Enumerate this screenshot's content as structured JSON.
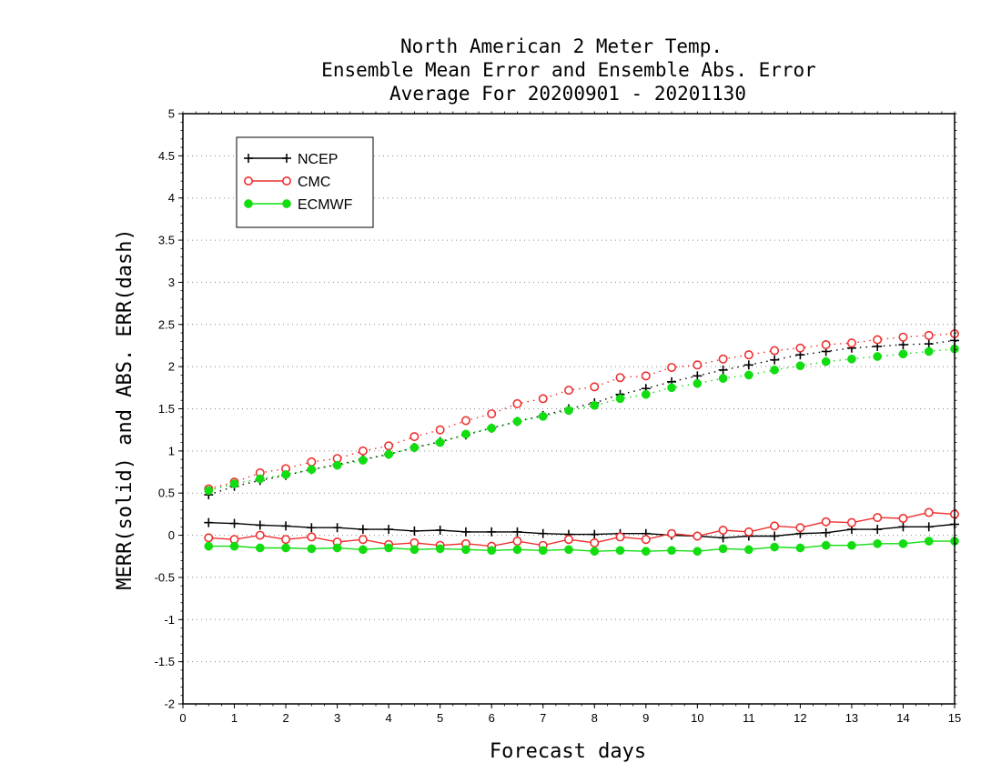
{
  "chart_data": {
    "type": "line",
    "title": [
      "North American 2 Meter Temp.",
      "Ensemble Mean Error and Ensemble Abs. Error",
      "Average For 20200901 - 20201130"
    ],
    "xlabel": "Forecast days",
    "ylabel": "MERR(solid) and ABS. ERR(dash)",
    "xlim": [
      0,
      15
    ],
    "ylim": [
      -2,
      5
    ],
    "xticks": [
      0,
      1,
      2,
      3,
      4,
      5,
      6,
      7,
      8,
      9,
      10,
      11,
      12,
      13,
      14,
      15
    ],
    "yticks": [
      -2,
      -1.5,
      -1,
      -0.5,
      0,
      0.5,
      1,
      1.5,
      2,
      2.5,
      3,
      3.5,
      4,
      4.5,
      5
    ],
    "grid": "horizontal-dotted",
    "legend_position": "top-left",
    "x": [
      0.5,
      1,
      1.5,
      2,
      2.5,
      3,
      3.5,
      4,
      4.5,
      5,
      5.5,
      6,
      6.5,
      7,
      7.5,
      8,
      8.5,
      9,
      9.5,
      10,
      10.5,
      11,
      11.5,
      12,
      12.5,
      13,
      13.5,
      14,
      14.5,
      15
    ],
    "series": [
      {
        "name": "NCEP",
        "color": "#000000",
        "marker": "plus",
        "merr": [
          0.15,
          0.14,
          0.12,
          0.11,
          0.09,
          0.09,
          0.07,
          0.07,
          0.05,
          0.06,
          0.04,
          0.04,
          0.04,
          0.02,
          0.01,
          0.01,
          0.02,
          0.02,
          0.0,
          -0.01,
          -0.03,
          -0.01,
          -0.01,
          0.02,
          0.03,
          0.07,
          0.07,
          0.1,
          0.1,
          0.13
        ],
        "abs_err": [
          0.48,
          0.58,
          0.65,
          0.71,
          0.78,
          0.84,
          0.9,
          0.96,
          1.04,
          1.11,
          1.19,
          1.27,
          1.35,
          1.42,
          1.5,
          1.57,
          1.67,
          1.74,
          1.82,
          1.89,
          1.96,
          2.02,
          2.08,
          2.14,
          2.18,
          2.22,
          2.24,
          2.26,
          2.27,
          2.31
        ]
      },
      {
        "name": "CMC",
        "color": "#ee3030",
        "marker": "open-circle",
        "merr": [
          -0.03,
          -0.05,
          0.0,
          -0.05,
          -0.02,
          -0.08,
          -0.05,
          -0.11,
          -0.09,
          -0.12,
          -0.1,
          -0.13,
          -0.07,
          -0.12,
          -0.05,
          -0.09,
          -0.02,
          -0.05,
          0.02,
          -0.01,
          0.06,
          0.04,
          0.11,
          0.09,
          0.16,
          0.15,
          0.21,
          0.2,
          0.27,
          0.25
        ],
        "abs_err": [
          0.55,
          0.63,
          0.74,
          0.79,
          0.87,
          0.91,
          1.0,
          1.06,
          1.17,
          1.25,
          1.36,
          1.44,
          1.56,
          1.62,
          1.72,
          1.76,
          1.87,
          1.89,
          1.99,
          2.02,
          2.09,
          2.14,
          2.19,
          2.22,
          2.26,
          2.28,
          2.32,
          2.35,
          2.37,
          2.39
        ]
      },
      {
        "name": "ECMWF",
        "color": "#11dd11",
        "marker": "filled-circle",
        "merr": [
          -0.13,
          -0.13,
          -0.15,
          -0.15,
          -0.16,
          -0.15,
          -0.17,
          -0.15,
          -0.17,
          -0.16,
          -0.17,
          -0.18,
          -0.17,
          -0.18,
          -0.17,
          -0.19,
          -0.18,
          -0.19,
          -0.18,
          -0.19,
          -0.16,
          -0.17,
          -0.14,
          -0.15,
          -0.12,
          -0.12,
          -0.1,
          -0.1,
          -0.07,
          -0.07
        ],
        "abs_err": [
          0.53,
          0.61,
          0.67,
          0.72,
          0.78,
          0.83,
          0.89,
          0.96,
          1.04,
          1.1,
          1.2,
          1.27,
          1.35,
          1.41,
          1.48,
          1.54,
          1.62,
          1.67,
          1.75,
          1.8,
          1.86,
          1.9,
          1.96,
          2.01,
          2.06,
          2.09,
          2.12,
          2.15,
          2.18,
          2.21
        ]
      }
    ]
  }
}
